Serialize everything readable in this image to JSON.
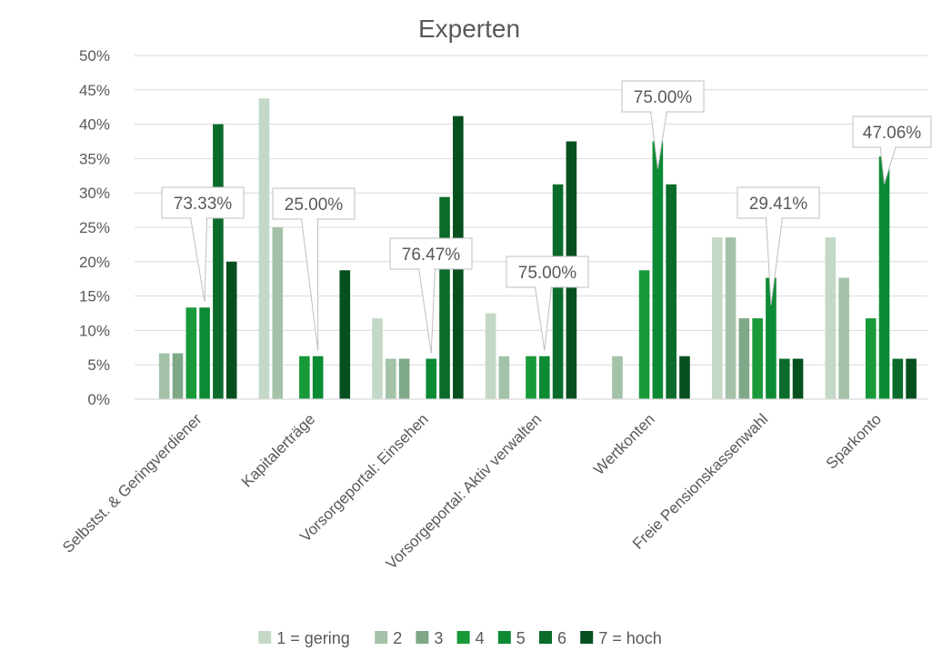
{
  "chart_data": {
    "type": "bar",
    "title": "Experten",
    "xlabel": "",
    "ylabel": "",
    "ylim": [
      0,
      0.5
    ],
    "yticks": [
      "0%",
      "5%",
      "10%",
      "15%",
      "20%",
      "25%",
      "30%",
      "35%",
      "40%",
      "45%",
      "50%"
    ],
    "grid": true,
    "legend_position": "bottom",
    "categories": [
      "Selbstst. & Geringverdiener",
      "Kapitalerträge",
      "Vorsorgeportal: Einsehen",
      "Vorsorgeportal: Aktiv verwalten",
      "Wertkonten",
      "Freie Pensionskassenwahl",
      "Sparkonto"
    ],
    "series": [
      {
        "name": "1 = gering",
        "color": "#c3d8c6",
        "values": [
          0,
          0.4375,
          0.1176,
          0.125,
          0,
          0.2353,
          0.2353
        ]
      },
      {
        "name": "2",
        "color": "#a3c2a8",
        "values": [
          0.0667,
          0.25,
          0.0588,
          0.0625,
          0.0625,
          0.2353,
          0.1765
        ]
      },
      {
        "name": "3",
        "color": "#7fa889",
        "values": [
          0.0667,
          0,
          0.0588,
          0,
          0,
          0.1176,
          0
        ]
      },
      {
        "name": "4",
        "color": "#189a3a",
        "values": [
          0.1333,
          0.0625,
          0,
          0.0625,
          0.1875,
          0.1176,
          0.1176
        ]
      },
      {
        "name": "5",
        "color": "#0c8a34",
        "values": [
          0.1333,
          0.0625,
          0.0588,
          0.0625,
          0.375,
          0.1765,
          0.3529
        ]
      },
      {
        "name": "6",
        "color": "#0a6b2b",
        "values": [
          0.4,
          0,
          0.2941,
          0.3125,
          0.3125,
          0.0588,
          0.0588
        ]
      },
      {
        "name": "7 = hoch",
        "color": "#064f1f",
        "values": [
          0.2,
          0.1875,
          0.4118,
          0.375,
          0.0625,
          0.0588,
          0.0588
        ]
      }
    ],
    "annotations": [
      {
        "text": "73.33%",
        "category": 0
      },
      {
        "text": "25.00%",
        "category": 1
      },
      {
        "text": "76.47%",
        "category": 2
      },
      {
        "text": "75.00%",
        "category": 3
      },
      {
        "text": "75.00%",
        "category": 4
      },
      {
        "text": "29.41%",
        "category": 5
      },
      {
        "text": "47.06%",
        "category": 6
      }
    ]
  }
}
